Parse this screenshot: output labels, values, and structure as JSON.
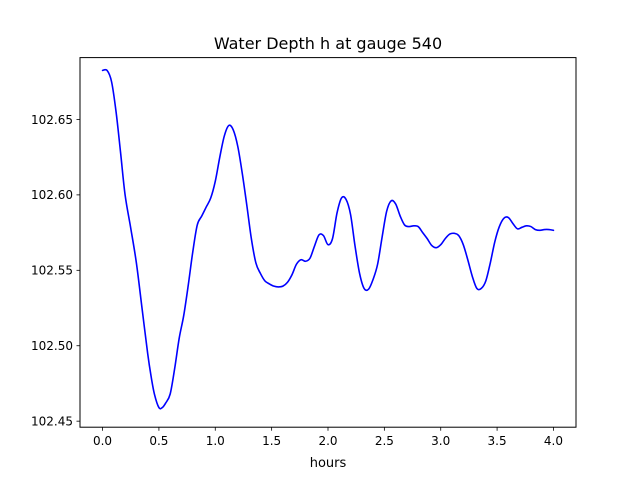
{
  "chart_data": {
    "type": "line",
    "title": "Water Depth h at gauge 540",
    "xlabel": "hours",
    "ylabel": "",
    "xlim": [
      -0.2,
      4.2
    ],
    "ylim": [
      102.446,
      102.691
    ],
    "xticks": [
      0.0,
      0.5,
      1.0,
      1.5,
      2.0,
      2.5,
      3.0,
      3.5,
      4.0
    ],
    "xtick_labels": [
      "0.0",
      "0.5",
      "1.0",
      "1.5",
      "2.0",
      "2.5",
      "3.0",
      "3.5",
      "4.0"
    ],
    "yticks": [
      102.45,
      102.5,
      102.55,
      102.6,
      102.65
    ],
    "ytick_labels": [
      "102.45",
      "102.50",
      "102.55",
      "102.60",
      "102.65"
    ],
    "grid": false,
    "legend": false,
    "series": [
      {
        "color": "#0000ff",
        "x": [
          0.0,
          0.04,
          0.08,
          0.12,
          0.16,
          0.2,
          0.25,
          0.3,
          0.35,
          0.4,
          0.43,
          0.46,
          0.5,
          0.53,
          0.56,
          0.6,
          0.64,
          0.68,
          0.72,
          0.76,
          0.8,
          0.84,
          0.88,
          0.92,
          0.96,
          1.0,
          1.04,
          1.08,
          1.12,
          1.16,
          1.2,
          1.24,
          1.28,
          1.32,
          1.36,
          1.4,
          1.44,
          1.48,
          1.52,
          1.56,
          1.6,
          1.64,
          1.68,
          1.72,
          1.76,
          1.8,
          1.84,
          1.88,
          1.92,
          1.96,
          2.0,
          2.04,
          2.08,
          2.12,
          2.16,
          2.2,
          2.24,
          2.28,
          2.32,
          2.36,
          2.4,
          2.44,
          2.48,
          2.52,
          2.56,
          2.6,
          2.64,
          2.68,
          2.72,
          2.76,
          2.8,
          2.84,
          2.88,
          2.92,
          2.96,
          3.0,
          3.04,
          3.08,
          3.12,
          3.16,
          3.2,
          3.24,
          3.28,
          3.32,
          3.36,
          3.4,
          3.44,
          3.48,
          3.52,
          3.56,
          3.6,
          3.64,
          3.68,
          3.72,
          3.76,
          3.8,
          3.84,
          3.88,
          3.92,
          3.96,
          4.0
        ],
        "y": [
          102.6825,
          102.6825,
          102.675,
          102.655,
          102.628,
          102.6,
          102.578,
          102.555,
          102.525,
          102.495,
          102.48,
          102.468,
          102.459,
          102.459,
          102.462,
          102.468,
          102.485,
          102.505,
          102.52,
          102.54,
          102.562,
          102.58,
          102.586,
          102.592,
          102.598,
          102.609,
          102.625,
          102.639,
          102.646,
          102.643,
          102.632,
          102.614,
          102.593,
          102.571,
          102.555,
          102.548,
          102.543,
          102.541,
          102.5395,
          102.539,
          102.5395,
          102.542,
          102.547,
          102.554,
          102.557,
          102.556,
          102.558,
          102.566,
          102.5735,
          102.573,
          102.567,
          102.571,
          102.588,
          102.598,
          102.597,
          102.587,
          102.566,
          102.548,
          102.538,
          102.5375,
          102.544,
          102.554,
          102.572,
          102.589,
          102.596,
          102.594,
          102.586,
          102.58,
          102.579,
          102.5795,
          102.579,
          102.575,
          102.571,
          102.5665,
          102.565,
          102.567,
          102.571,
          102.574,
          102.5745,
          102.573,
          102.567,
          102.557,
          102.546,
          102.538,
          102.538,
          102.543,
          102.555,
          102.569,
          102.579,
          102.5845,
          102.585,
          102.581,
          102.5775,
          102.5785,
          102.5795,
          102.579,
          102.577,
          102.5765,
          102.577,
          102.577,
          102.5765
        ]
      }
    ]
  }
}
